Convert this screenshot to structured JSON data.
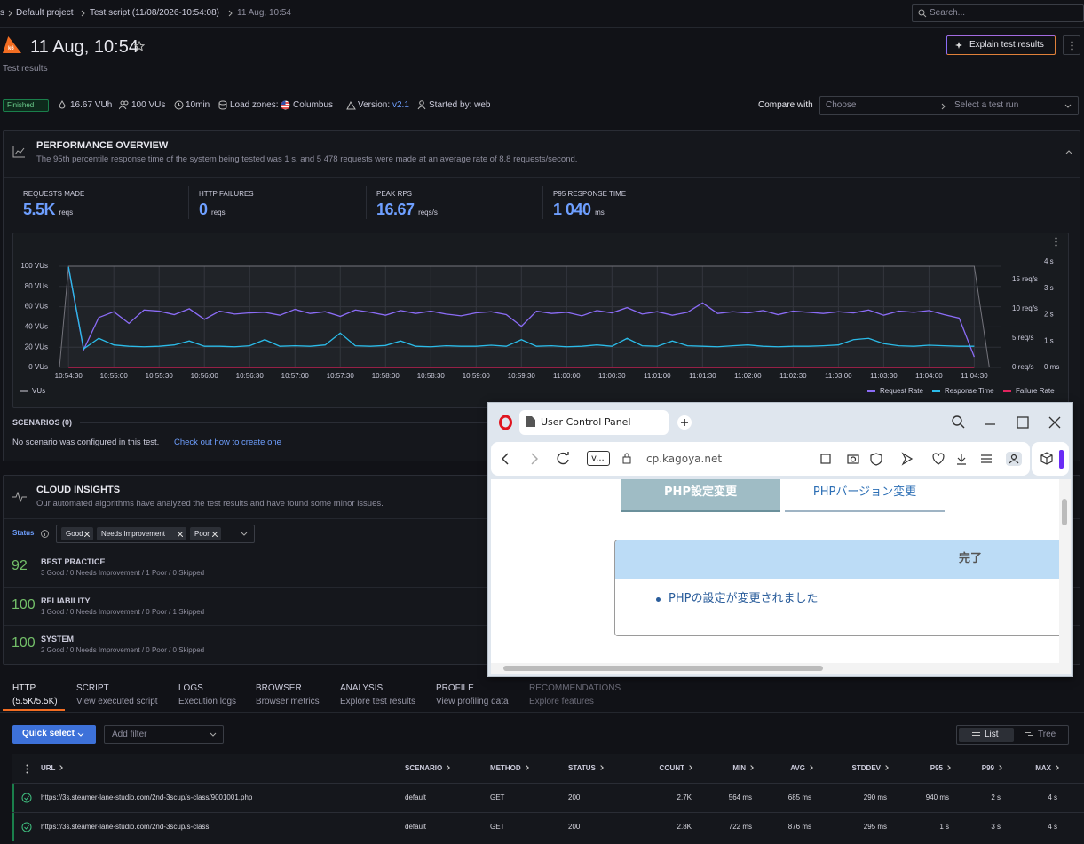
{
  "breadcrumb": {
    "items": [
      "s",
      "Default project",
      "Test script (11/08/2026-10:54:08)",
      "11 Aug, 10:54"
    ],
    "search": "Search..."
  },
  "header": {
    "logo": "k6",
    "title": "11 Aug, 10:54",
    "subtitle": "Test results",
    "explain_button": "Explain test results"
  },
  "summary": {
    "status": "Finished",
    "vuh": "16.67 VUh",
    "vus": "100 VUs",
    "duration": "10min",
    "load_zones_label": "Load zones:",
    "load_zone": "Columbus",
    "version_label": "Version:",
    "version": "v2.1",
    "started_by": "Started by: web",
    "compare_label": "Compare with",
    "compare_choose": "Choose",
    "compare_run": "Select a test run"
  },
  "performance": {
    "title": "PERFORMANCE OVERVIEW",
    "description": "The 95th percentile response time of the system being tested was 1 s, and 5 478 requests were made at an average rate of 8.8 requests/second.",
    "metrics": [
      {
        "label": "REQUESTS MADE",
        "value": "5.5K",
        "unit": "reqs"
      },
      {
        "label": "HTTP FAILURES",
        "value": "0",
        "unit": "reqs"
      },
      {
        "label": "PEAK RPS",
        "value": "16.67",
        "unit": "reqs/s"
      },
      {
        "label": "P95 RESPONSE TIME",
        "value": "1 040",
        "unit": "ms"
      }
    ],
    "scenarios_title": "SCENARIOS (0)",
    "scenarios_text": "No scenario was configured in this test.",
    "scenarios_link": "Check out how to create one"
  },
  "chart_data": {
    "type": "line",
    "x": [
      "10:54:30",
      "10:54:40",
      "10:54:50",
      "10:55:00",
      "10:55:10",
      "10:55:20",
      "10:55:30",
      "10:55:40",
      "10:55:50",
      "10:56:00",
      "10:56:10",
      "10:56:20",
      "10:56:30",
      "10:56:40",
      "10:56:50",
      "10:57:00",
      "10:57:10",
      "10:57:20",
      "10:57:30",
      "10:57:40",
      "10:57:50",
      "10:58:00",
      "10:58:10",
      "10:58:20",
      "10:58:30",
      "10:58:40",
      "10:58:50",
      "10:59:00",
      "10:59:10",
      "10:59:20",
      "10:59:30",
      "10:59:40",
      "10:59:50",
      "11:00:00",
      "11:00:10",
      "11:00:20",
      "11:00:30",
      "11:00:40",
      "11:00:50",
      "11:01:00",
      "11:01:10",
      "11:01:20",
      "11:01:30",
      "11:01:40",
      "11:01:50",
      "11:02:00",
      "11:02:10",
      "11:02:20",
      "11:02:30",
      "11:02:40",
      "11:02:50",
      "11:03:00",
      "11:03:10",
      "11:03:20",
      "11:03:30",
      "11:03:40",
      "11:03:50",
      "11:04:00",
      "11:04:10",
      "11:04:20",
      "11:04:30"
    ],
    "xlim": [
      "10:54:24",
      "11:04:48"
    ],
    "xticks": [
      "10:54:30",
      "10:55:00",
      "10:55:30",
      "10:56:00",
      "10:56:30",
      "10:57:00",
      "10:57:30",
      "10:58:00",
      "10:58:30",
      "10:59:00",
      "10:59:30",
      "11:00:00",
      "11:00:30",
      "11:01:00",
      "11:01:30",
      "11:02:00",
      "11:02:30",
      "11:03:00",
      "11:03:30",
      "11:04:00",
      "11:04:30"
    ],
    "ylim": [
      0,
      100
    ],
    "yticks": [
      {
        "value": 0,
        "label": "0 VUs"
      },
      {
        "value": 20,
        "label": "20 VUs"
      },
      {
        "value": 40,
        "label": "40 VUs"
      },
      {
        "value": 60,
        "label": "60 VUs"
      },
      {
        "value": 80,
        "label": "80 VUs"
      },
      {
        "value": 100,
        "label": "100 VUs"
      }
    ],
    "y2lim": [
      0,
      17.25
    ],
    "y2ticks": [
      {
        "value": 0,
        "label": "0 req/s"
      },
      {
        "value": 5,
        "label": "5 req/s"
      },
      {
        "value": 10,
        "label": "10 req/s"
      },
      {
        "value": 15,
        "label": "15 req/s"
      }
    ],
    "y3lim": [
      0,
      3.83
    ],
    "y3ticks": [
      {
        "value": 0,
        "label": "0 ms"
      },
      {
        "value": 1,
        "label": "1 s"
      },
      {
        "value": 2,
        "label": "2 s"
      },
      {
        "value": 3,
        "label": "3 s"
      },
      {
        "value": 4,
        "label": "4 s"
      }
    ],
    "grid": true,
    "series": [
      {
        "name": "VUs",
        "color": "#74747c",
        "axis": "y",
        "x": [
          "10:54:24",
          "10:54:30",
          "11:04:30",
          "11:04:40"
        ],
        "values": [
          0,
          100,
          100,
          0
        ]
      },
      {
        "name": "Request Rate",
        "color": "#8b6cf6",
        "axis": "y2",
        "values": [
          17.0,
          3.0,
          8.5,
          9.5,
          7.5,
          9.8,
          9.6,
          9.0,
          10.0,
          8.2,
          9.6,
          9.1,
          9.3,
          9.4,
          8.9,
          9.9,
          9.2,
          9.5,
          8.7,
          9.8,
          9.4,
          8.9,
          9.7,
          9.2,
          9.6,
          9.1,
          8.8,
          9.3,
          9.5,
          9.0,
          7.0,
          9.6,
          9.2,
          9.4,
          8.8,
          9.7,
          9.3,
          10.2,
          9.1,
          9.5,
          8.9,
          9.4,
          11.0,
          9.2,
          9.5,
          9.3,
          9.7,
          9.0,
          9.6,
          9.4,
          9.2,
          9.5,
          9.3,
          9.8,
          8.9,
          9.6,
          9.4,
          9.7,
          9.0,
          8.4,
          1.8
        ]
      },
      {
        "name": "Response Time",
        "color": "#2bbbe8",
        "axis": "y3",
        "values": [
          3.8,
          0.7,
          1.1,
          0.85,
          0.8,
          0.78,
          0.8,
          0.85,
          1.0,
          0.8,
          0.8,
          0.78,
          0.82,
          1.05,
          0.8,
          0.82,
          0.8,
          0.85,
          1.3,
          0.82,
          0.8,
          0.83,
          1.0,
          0.8,
          0.78,
          0.82,
          0.8,
          0.8,
          0.84,
          0.8,
          1.05,
          0.8,
          0.82,
          0.78,
          0.8,
          0.85,
          0.8,
          1.1,
          0.82,
          0.8,
          1.0,
          0.82,
          0.8,
          0.78,
          0.82,
          0.85,
          0.8,
          0.78,
          0.8,
          0.8,
          0.82,
          0.85,
          1.05,
          1.1,
          0.9,
          0.82,
          0.8,
          0.84,
          0.82,
          0.8,
          0.8
        ]
      },
      {
        "name": "Failure Rate",
        "color": "#e0245e",
        "axis": "y2",
        "x": [
          "10:54:30",
          "11:04:30"
        ],
        "values": [
          0,
          0
        ]
      }
    ]
  },
  "insights": {
    "title": "CLOUD INSIGHTS",
    "description": "Our automated algorithms have analyzed the test results and have found some minor issues.",
    "status_label": "Status",
    "chips": [
      "Good",
      "Needs Improvement",
      "Poor"
    ],
    "rows": [
      {
        "score": "92",
        "name": "BEST PRACTICE",
        "detail": "3 Good / 0 Needs Improvement / 1 Poor / 0 Skipped"
      },
      {
        "score": "100",
        "name": "RELIABILITY",
        "detail": "1 Good / 0 Needs Improvement / 0 Poor / 1 Skipped"
      },
      {
        "score": "100",
        "name": "SYSTEM",
        "detail": "2 Good / 0 Needs Improvement / 0 Poor / 0 Skipped"
      }
    ]
  },
  "tabs": [
    {
      "title": "HTTP",
      "subtitle": "(5.5K/5.5K)"
    },
    {
      "title": "SCRIPT",
      "subtitle": "View executed script"
    },
    {
      "title": "LOGS",
      "subtitle": "Execution logs"
    },
    {
      "title": "BROWSER",
      "subtitle": "Browser metrics"
    },
    {
      "title": "ANALYSIS",
      "subtitle": "Explore test results"
    },
    {
      "title": "PROFILE",
      "subtitle": "View profiling data"
    },
    {
      "title": "RECOMMENDATIONS",
      "subtitle": "Explore features"
    }
  ],
  "toolbar": {
    "quick_select": "Quick select",
    "add_filter": "Add filter",
    "list": "List",
    "tree": "Tree"
  },
  "table": {
    "columns": [
      "URL",
      "SCENARIO",
      "METHOD",
      "STATUS",
      "COUNT",
      "MIN",
      "AVG",
      "STDDEV",
      "P95",
      "P99",
      "MAX"
    ],
    "rows": [
      [
        "https://3s.steamer-lane-studio.com/2nd-3scup/s-class/9001001.php",
        "default",
        "GET",
        "200",
        "2.7K",
        "564 ms",
        "685 ms",
        "290 ms",
        "940 ms",
        "2 s",
        "4 s"
      ],
      [
        "https://3s.steamer-lane-studio.com/2nd-3scup/s-class",
        "default",
        "GET",
        "200",
        "2.8K",
        "722 ms",
        "876 ms",
        "295 ms",
        "1 s",
        "3 s",
        "4 s"
      ]
    ]
  },
  "browser": {
    "tab_title": "User Control Panel",
    "site_button": "v...",
    "url": "cp.kagoya.net",
    "tabs": [
      "PHP設定変更",
      "PHPバージョン変更"
    ],
    "box_title": "完了",
    "message": "PHPの設定が変更されました"
  }
}
